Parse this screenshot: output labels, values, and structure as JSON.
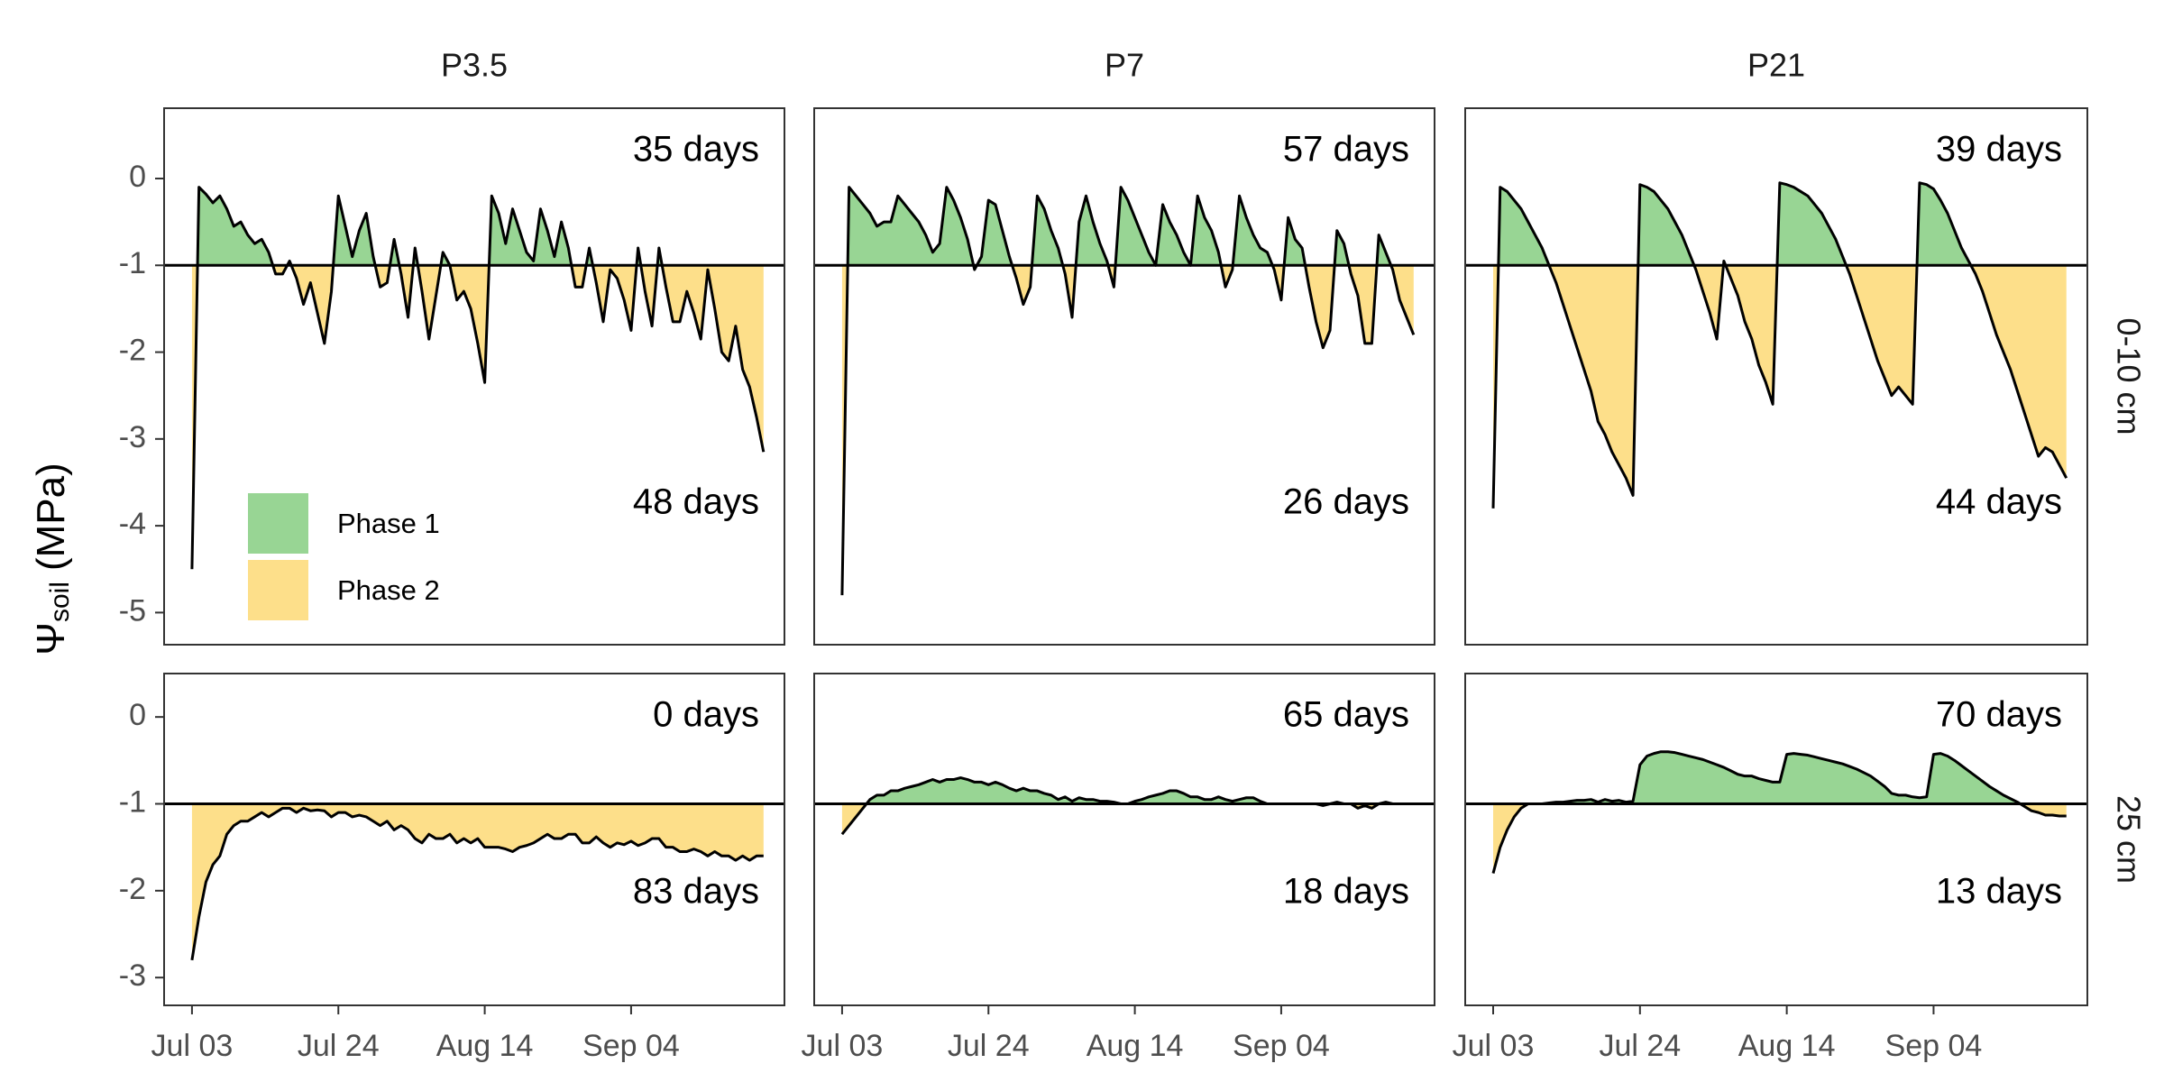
{
  "chart_data": {
    "type": "faceted-area-line",
    "ylabel": [
      "Ψ",
      "soil",
      "(MPa)"
    ],
    "columns": [
      "P3.5",
      "P7",
      "P21"
    ],
    "x": [
      "Jul 03",
      "Jul 04",
      "Jul 05",
      "Jul 06",
      "Jul 07",
      "Jul 08",
      "Jul 09",
      "Jul 10",
      "Jul 11",
      "Jul 12",
      "Jul 13",
      "Jul 14",
      "Jul 15",
      "Jul 16",
      "Jul 17",
      "Jul 18",
      "Jul 19",
      "Jul 20",
      "Jul 21",
      "Jul 22",
      "Jul 23",
      "Jul 24",
      "Jul 25",
      "Jul 26",
      "Jul 27",
      "Jul 28",
      "Jul 29",
      "Jul 30",
      "Jul 31",
      "Aug 01",
      "Aug 02",
      "Aug 03",
      "Aug 04",
      "Aug 05",
      "Aug 06",
      "Aug 07",
      "Aug 08",
      "Aug 09",
      "Aug 10",
      "Aug 11",
      "Aug 12",
      "Aug 13",
      "Aug 14",
      "Aug 15",
      "Aug 16",
      "Aug 17",
      "Aug 18",
      "Aug 19",
      "Aug 20",
      "Aug 21",
      "Aug 22",
      "Aug 23",
      "Aug 24",
      "Aug 25",
      "Aug 26",
      "Aug 27",
      "Aug 28",
      "Aug 29",
      "Aug 30",
      "Aug 31",
      "Sep 01",
      "Sep 02",
      "Sep 03",
      "Sep 04",
      "Sep 05",
      "Sep 06",
      "Sep 07",
      "Sep 08",
      "Sep 09",
      "Sep 10",
      "Sep 11",
      "Sep 12",
      "Sep 13",
      "Sep 14",
      "Sep 15",
      "Sep 16",
      "Sep 17",
      "Sep 18",
      "Sep 19",
      "Sep 20",
      "Sep 21",
      "Sep 22",
      "Sep 23"
    ],
    "xlim": [
      "Jun 29",
      "Sep 26"
    ],
    "xticks": [
      "Jul 03",
      "Jul 24",
      "Aug 14",
      "Sep 04"
    ],
    "threshold": -1,
    "line_color": "#000000",
    "phases": [
      {
        "name": "Phase 1",
        "color": "#98d594"
      },
      {
        "name": "Phase 2",
        "color": "#fddf8a"
      }
    ],
    "rows": [
      {
        "label": "0-10 cm",
        "ylim": [
          -5.37,
          0.81
        ],
        "yticks": [
          0,
          -1,
          -2,
          -3,
          -4,
          -5
        ],
        "panels": [
          {
            "annotations": [
              "35 days",
              "48 days"
            ],
            "values": [
              -4.5,
              -0.1,
              -0.18,
              -0.28,
              -0.2,
              -0.35,
              -0.55,
              -0.5,
              -0.65,
              -0.75,
              -0.7,
              -0.85,
              -1.1,
              -1.1,
              -0.95,
              -1.15,
              -1.45,
              -1.2,
              -1.55,
              -1.9,
              -1.3,
              -0.2,
              -0.55,
              -0.9,
              -0.6,
              -0.4,
              -0.9,
              -1.25,
              -1.2,
              -0.7,
              -1.1,
              -1.6,
              -0.8,
              -1.3,
              -1.85,
              -1.35,
              -0.85,
              -1.0,
              -1.4,
              -1.3,
              -1.5,
              -1.9,
              -2.35,
              -0.2,
              -0.4,
              -0.75,
              -0.35,
              -0.6,
              -0.85,
              -0.95,
              -0.35,
              -0.6,
              -0.9,
              -0.5,
              -0.8,
              -1.25,
              -1.25,
              -0.8,
              -1.2,
              -1.65,
              -1.05,
              -1.15,
              -1.4,
              -1.75,
              -0.8,
              -1.3,
              -1.7,
              -0.8,
              -1.25,
              -1.65,
              -1.65,
              -1.3,
              -1.55,
              -1.85,
              -1.05,
              -1.5,
              -2.0,
              -2.1,
              -1.7,
              -2.2,
              -2.4,
              -2.75,
              -3.15
            ]
          },
          {
            "annotations": [
              "57 days",
              "26 days"
            ],
            "values": [
              -4.8,
              -0.1,
              -0.2,
              -0.3,
              -0.4,
              -0.55,
              -0.5,
              -0.5,
              -0.2,
              -0.3,
              -0.4,
              -0.5,
              -0.65,
              -0.85,
              -0.75,
              -0.1,
              -0.25,
              -0.45,
              -0.7,
              -1.05,
              -0.9,
              -0.25,
              -0.3,
              -0.6,
              -0.9,
              -1.15,
              -1.45,
              -1.25,
              -0.2,
              -0.35,
              -0.6,
              -0.8,
              -1.1,
              -1.6,
              -0.5,
              -0.2,
              -0.5,
              -0.75,
              -0.95,
              -1.25,
              -0.1,
              -0.25,
              -0.45,
              -0.65,
              -0.85,
              -1.0,
              -0.3,
              -0.5,
              -0.65,
              -0.85,
              -1.0,
              -0.2,
              -0.45,
              -0.6,
              -0.85,
              -1.25,
              -1.05,
              -0.2,
              -0.45,
              -0.65,
              -0.8,
              -0.85,
              -1.05,
              -1.4,
              -0.45,
              -0.7,
              -0.8,
              -1.25,
              -1.65,
              -1.95,
              -1.75,
              -0.6,
              -0.75,
              -1.1,
              -1.35,
              -1.9,
              -1.9,
              -0.65,
              -0.85,
              -1.05,
              -1.4,
              -1.6,
              -1.8
            ]
          },
          {
            "annotations": [
              "39 days",
              "44 days"
            ],
            "values": [
              -3.8,
              -0.1,
              -0.15,
              -0.25,
              -0.35,
              -0.5,
              -0.65,
              -0.8,
              -1.0,
              -1.2,
              -1.45,
              -1.7,
              -1.95,
              -2.2,
              -2.45,
              -2.8,
              -2.95,
              -3.15,
              -3.3,
              -3.45,
              -3.65,
              -0.07,
              -0.1,
              -0.15,
              -0.25,
              -0.35,
              -0.5,
              -0.65,
              -0.85,
              -1.05,
              -1.3,
              -1.55,
              -1.85,
              -0.95,
              -1.15,
              -1.35,
              -1.65,
              -1.85,
              -2.15,
              -2.35,
              -2.6,
              -0.05,
              -0.07,
              -0.1,
              -0.15,
              -0.2,
              -0.3,
              -0.4,
              -0.55,
              -0.7,
              -0.9,
              -1.1,
              -1.35,
              -1.6,
              -1.85,
              -2.1,
              -2.3,
              -2.5,
              -2.4,
              -2.5,
              -2.6,
              -0.05,
              -0.07,
              -0.12,
              -0.25,
              -0.4,
              -0.6,
              -0.8,
              -0.95,
              -1.1,
              -1.3,
              -1.55,
              -1.8,
              -2.0,
              -2.2,
              -2.45,
              -2.7,
              -2.95,
              -3.2,
              -3.1,
              -3.15,
              -3.3,
              -3.45
            ]
          }
        ]
      },
      {
        "label": "25 cm",
        "ylim": [
          -3.32,
          0.5
        ],
        "yticks": [
          0,
          -1,
          -2,
          -3
        ],
        "panels": [
          {
            "annotations": [
              "0 days",
              "83 days"
            ],
            "values": [
              -2.8,
              -2.3,
              -1.9,
              -1.7,
              -1.6,
              -1.35,
              -1.25,
              -1.2,
              -1.2,
              -1.15,
              -1.1,
              -1.15,
              -1.1,
              -1.05,
              -1.05,
              -1.1,
              -1.05,
              -1.08,
              -1.07,
              -1.08,
              -1.15,
              -1.1,
              -1.1,
              -1.15,
              -1.13,
              -1.15,
              -1.2,
              -1.25,
              -1.2,
              -1.3,
              -1.25,
              -1.3,
              -1.4,
              -1.45,
              -1.35,
              -1.4,
              -1.4,
              -1.35,
              -1.45,
              -1.4,
              -1.45,
              -1.4,
              -1.5,
              -1.5,
              -1.5,
              -1.52,
              -1.55,
              -1.5,
              -1.48,
              -1.45,
              -1.4,
              -1.35,
              -1.4,
              -1.4,
              -1.35,
              -1.35,
              -1.45,
              -1.45,
              -1.38,
              -1.45,
              -1.5,
              -1.45,
              -1.47,
              -1.43,
              -1.48,
              -1.45,
              -1.4,
              -1.4,
              -1.5,
              -1.5,
              -1.55,
              -1.55,
              -1.52,
              -1.55,
              -1.6,
              -1.55,
              -1.6,
              -1.6,
              -1.65,
              -1.6,
              -1.65,
              -1.6,
              -1.6
            ]
          },
          {
            "annotations": [
              "65 days",
              "18 days"
            ],
            "values": [
              -1.35,
              -1.25,
              -1.15,
              -1.05,
              -0.95,
              -0.9,
              -0.9,
              -0.85,
              -0.85,
              -0.82,
              -0.8,
              -0.78,
              -0.75,
              -0.72,
              -0.75,
              -0.72,
              -0.72,
              -0.7,
              -0.72,
              -0.75,
              -0.75,
              -0.78,
              -0.75,
              -0.78,
              -0.82,
              -0.85,
              -0.82,
              -0.85,
              -0.85,
              -0.88,
              -0.9,
              -0.95,
              -0.92,
              -0.97,
              -0.93,
              -0.95,
              -0.95,
              -0.97,
              -0.97,
              -0.98,
              -1.0,
              -1.0,
              -0.97,
              -0.95,
              -0.92,
              -0.9,
              -0.88,
              -0.85,
              -0.85,
              -0.88,
              -0.92,
              -0.92,
              -0.95,
              -0.95,
              -0.92,
              -0.95,
              -0.97,
              -0.95,
              -0.93,
              -0.93,
              -0.97,
              -1.0,
              -1.0,
              -1.0,
              -1.0,
              -1.0,
              -1.0,
              -1.0,
              -1.0,
              -1.02,
              -1.0,
              -0.98,
              -1.0,
              -1.0,
              -1.05,
              -1.02,
              -1.05,
              -1.0,
              -0.98,
              -1.0,
              -1.0,
              -1.0,
              -1.0
            ]
          },
          {
            "annotations": [
              "70 days",
              "13 days"
            ],
            "values": [
              -1.8,
              -1.5,
              -1.3,
              -1.15,
              -1.05,
              -1.0,
              -1.0,
              -1.0,
              -0.99,
              -0.98,
              -0.98,
              -0.97,
              -0.96,
              -0.96,
              -0.95,
              -0.98,
              -0.95,
              -0.97,
              -0.96,
              -0.98,
              -0.97,
              -0.55,
              -0.45,
              -0.42,
              -0.4,
              -0.4,
              -0.41,
              -0.43,
              -0.45,
              -0.47,
              -0.49,
              -0.52,
              -0.55,
              -0.58,
              -0.62,
              -0.66,
              -0.68,
              -0.68,
              -0.71,
              -0.73,
              -0.75,
              -0.75,
              -0.43,
              -0.42,
              -0.43,
              -0.44,
              -0.46,
              -0.48,
              -0.5,
              -0.52,
              -0.54,
              -0.57,
              -0.6,
              -0.64,
              -0.68,
              -0.74,
              -0.8,
              -0.88,
              -0.9,
              -0.9,
              -0.92,
              -0.93,
              -0.92,
              -0.43,
              -0.42,
              -0.45,
              -0.5,
              -0.56,
              -0.62,
              -0.68,
              -0.74,
              -0.8,
              -0.85,
              -0.9,
              -0.94,
              -0.98,
              -1.03,
              -1.08,
              -1.1,
              -1.13,
              -1.13,
              -1.14,
              -1.14
            ]
          }
        ]
      }
    ]
  }
}
